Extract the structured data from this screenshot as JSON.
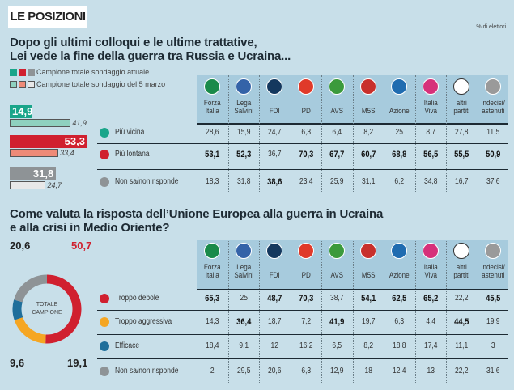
{
  "header": {
    "title": "LE POSIZIONI",
    "unit": "% di elettori"
  },
  "colors": {
    "teal": "#1aa58a",
    "red": "#d0202f",
    "gray": "#8e9396",
    "orange": "#f5a623",
    "blue": "#1f6f9b",
    "bg": "#c8dfe9"
  },
  "parties": [
    {
      "l1": "Forza",
      "l2": "Italia",
      "logo": "#1a8a4a"
    },
    {
      "l1": "Lega",
      "l2": "Salvini",
      "logo": "#3463a8"
    },
    {
      "l1": "FDI",
      "l2": "",
      "logo": "#14385e"
    },
    {
      "l1": "PD",
      "l2": "",
      "logo": "#e03a2a"
    },
    {
      "l1": "AVS",
      "l2": "",
      "logo": "#3b9a3c"
    },
    {
      "l1": "M5S",
      "l2": "",
      "logo": "#c8302c"
    },
    {
      "l1": "Azione",
      "l2": "",
      "logo": "#1f6cb0"
    },
    {
      "l1": "Italia",
      "l2": "Viva",
      "logo": "#d6307a"
    },
    {
      "l1": "altri",
      "l2": "partiti",
      "logo": "#ffffff"
    },
    {
      "l1": "indecisi/",
      "l2": "astenuti",
      "logo": "#9a9a9a"
    }
  ],
  "chart_data": [
    {
      "type": "table+bar",
      "title": "Dopo gli ultimi colloqui e le ultime trattative,\nLei vede la fine della guerra tra Russia e Ucraina...",
      "legend": [
        "Campione totale sondaggio attuale",
        "Campione totale sondaggio del 5 marzo"
      ],
      "summary": {
        "current": [
          14.9,
          53.3,
          31.8
        ],
        "march5": [
          41.9,
          33.4,
          24.7
        ]
      },
      "rows": [
        {
          "label": "Più vicina",
          "color": "#1aa58a",
          "values": [
            "28,6",
            "15,9",
            "24,7",
            "6,3",
            "6,4",
            "8,2",
            "25",
            "8,7",
            "27,8",
            "11,5"
          ],
          "bold": []
        },
        {
          "label": "Più lontana",
          "color": "#d0202f",
          "values": [
            "53,1",
            "52,3",
            "36,7",
            "70,3",
            "67,7",
            "60,7",
            "68,8",
            "56,5",
            "55,5",
            "50,9"
          ],
          "bold": [
            0,
            1,
            3,
            4,
            5,
            6,
            7,
            8,
            9
          ]
        },
        {
          "label": "Non sa/non risponde",
          "color": "#8e9396",
          "values": [
            "18,3",
            "31,8",
            "38,6",
            "23,4",
            "25,9",
            "31,1",
            "6,2",
            "34,8",
            "16,7",
            "37,6"
          ],
          "bold": [
            2
          ]
        }
      ]
    },
    {
      "type": "table+pie",
      "title": "Come valuta la risposta dell’Unione Europea alla guerra in Ucraina\ne alla crisi in Medio Oriente?",
      "center_label": "TOTALE CAMPIONE",
      "pie": [
        {
          "value": 50.7,
          "color": "#d0202f"
        },
        {
          "value": 19.1,
          "color": "#f5a623"
        },
        {
          "value": 9.6,
          "color": "#1f6f9b"
        },
        {
          "value": 20.6,
          "color": "#8e9396"
        }
      ],
      "pie_labels": [
        "50,7",
        "19,1",
        "9,6",
        "20,6"
      ],
      "rows": [
        {
          "label": "Troppo debole",
          "color": "#d0202f",
          "values": [
            "65,3",
            "25",
            "48,7",
            "70,3",
            "38,7",
            "54,1",
            "62,5",
            "65,2",
            "22,2",
            "45,5"
          ],
          "bold": [
            0,
            2,
            3,
            5,
            6,
            7,
            9
          ]
        },
        {
          "label": "Troppo aggressiva",
          "color": "#f5a623",
          "values": [
            "14,3",
            "36,4",
            "18,7",
            "7,2",
            "41,9",
            "19,7",
            "6,3",
            "4,4",
            "44,5",
            "19,9"
          ],
          "bold": [
            1,
            4,
            8
          ]
        },
        {
          "label": "Efficace",
          "color": "#1f6f9b",
          "values": [
            "18,4",
            "9,1",
            "12",
            "16,2",
            "6,5",
            "8,2",
            "18,8",
            "17,4",
            "11,1",
            "3"
          ],
          "bold": []
        },
        {
          "label": "Non sa/non risponde",
          "color": "#8e9396",
          "values": [
            "2",
            "29,5",
            "20,6",
            "6,3",
            "12,9",
            "18",
            "12,4",
            "13",
            "22,2",
            "31,6"
          ],
          "bold": []
        }
      ]
    }
  ]
}
